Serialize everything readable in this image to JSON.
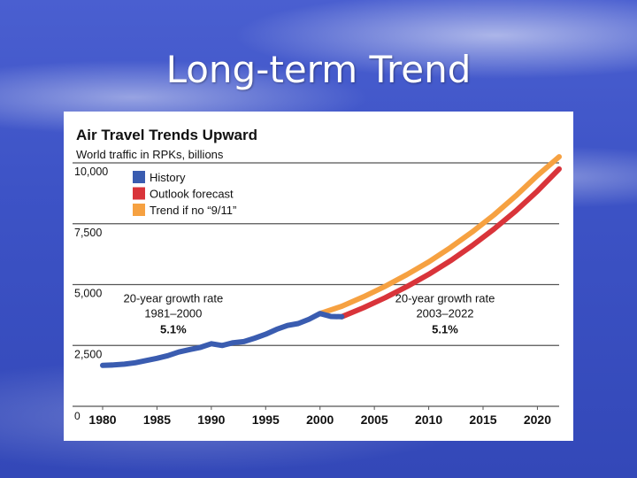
{
  "slide": {
    "title": "Long-term Trend"
  },
  "chart_data": {
    "type": "line",
    "title": "Air Travel Trends Upward",
    "ylabel": "World traffic in RPKs, billions",
    "xlabel": "",
    "xlim": [
      1980,
      2022
    ],
    "ylim": [
      0,
      10000
    ],
    "x_ticks": [
      1980,
      1985,
      1990,
      1995,
      2000,
      2005,
      2010,
      2015,
      2020
    ],
    "y_ticks": [
      "0",
      "2,500",
      "5,000",
      "7,500",
      "10,000"
    ],
    "y_tick_values": [
      0,
      2500,
      5000,
      7500,
      10000
    ],
    "grid": true,
    "legend_position": "top-left",
    "series": [
      {
        "name": "History",
        "color": "#3a5cb0",
        "x": [
          1980,
          1981,
          1982,
          1983,
          1984,
          1985,
          1986,
          1987,
          1988,
          1989,
          1990,
          1991,
          1992,
          1993,
          1994,
          1995,
          1996,
          1997,
          1998,
          1999,
          2000,
          2001,
          2002
        ],
        "y": [
          1680,
          1700,
          1730,
          1790,
          1880,
          1970,
          2080,
          2230,
          2330,
          2420,
          2570,
          2500,
          2610,
          2660,
          2800,
          2960,
          3160,
          3320,
          3400,
          3580,
          3810,
          3690,
          3680
        ]
      },
      {
        "name": "Outlook forecast",
        "color": "#d9343a",
        "x": [
          2002,
          2004,
          2006,
          2008,
          2010,
          2012,
          2014,
          2016,
          2018,
          2020,
          2022
        ],
        "y": [
          3680,
          4050,
          4460,
          4920,
          5420,
          5980,
          6600,
          7280,
          8020,
          8840,
          9750
        ]
      },
      {
        "name": "Trend if no “9/11”",
        "color": "#f6a141",
        "x": [
          2000,
          2002,
          2004,
          2006,
          2008,
          2010,
          2012,
          2014,
          2016,
          2018,
          2020,
          2022
        ],
        "y": [
          3810,
          4110,
          4500,
          4930,
          5410,
          5930,
          6520,
          7160,
          7860,
          8640,
          9480,
          10250
        ]
      }
    ],
    "annotations": [
      {
        "line1": "20-year growth rate",
        "line2": "1981–2000",
        "value": "5.1%",
        "x": 1986.5,
        "y": 5000
      },
      {
        "line1": "20-year growth rate",
        "line2": "2003–2022",
        "value": "5.1%",
        "x": 2011.5,
        "y": 5000
      }
    ]
  }
}
